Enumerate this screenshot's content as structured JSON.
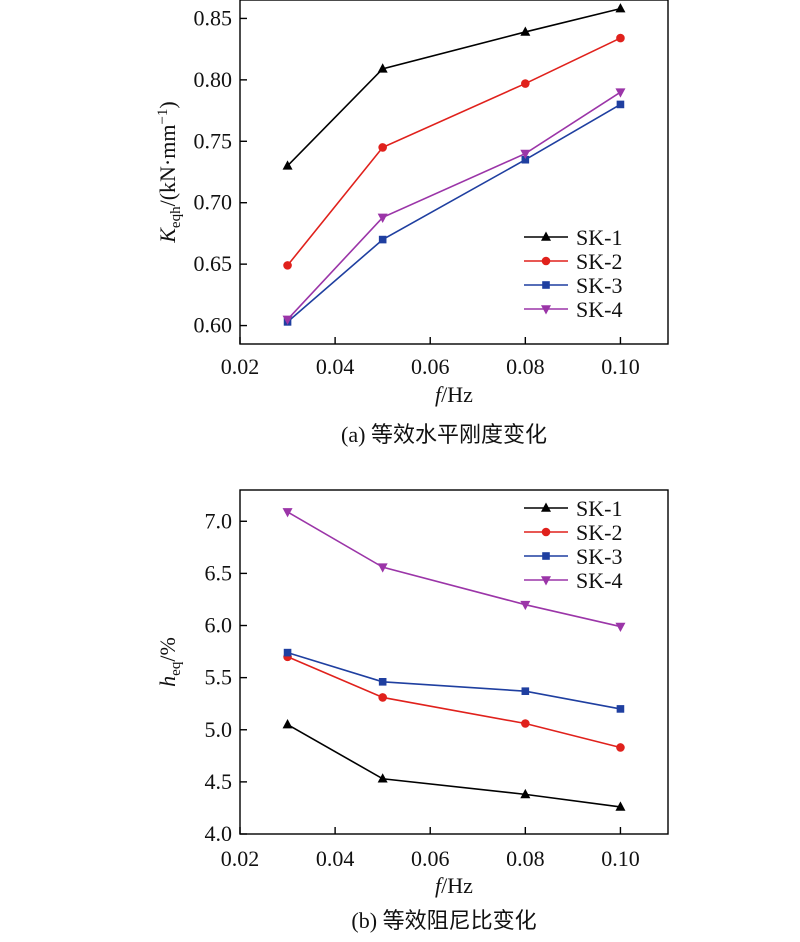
{
  "chart_data": [
    {
      "type": "line",
      "caption": "(a) 等效水平刚度变化",
      "xlabel": {
        "var": "f",
        "unit": "/Hz"
      },
      "ylabel": {
        "main": "K",
        "sub": "eqh",
        "rest": "/(kN·mm",
        "sup": "−1",
        "close": ")"
      },
      "x": [
        0.03,
        0.05,
        0.08,
        0.1
      ],
      "xlim": [
        0.02,
        0.11
      ],
      "ylim": [
        0.585,
        0.865
      ],
      "xticks": [
        "0.02",
        "0.04",
        "0.06",
        "0.08",
        "0.10"
      ],
      "yticks": [
        "0.60",
        "0.65",
        "0.70",
        "0.75",
        "0.80",
        "0.85"
      ],
      "legend_position": "lower-right",
      "series": [
        {
          "name": "SK-1",
          "color": "#000000",
          "marker": "triangle-up",
          "values": [
            0.73,
            0.809,
            0.839,
            0.858
          ]
        },
        {
          "name": "SK-2",
          "color": "#e0211c",
          "marker": "circle",
          "values": [
            0.649,
            0.745,
            0.797,
            0.834
          ]
        },
        {
          "name": "SK-3",
          "color": "#1f3fa0",
          "marker": "square",
          "values": [
            0.603,
            0.67,
            0.735,
            0.78
          ]
        },
        {
          "name": "SK-4",
          "color": "#9b35a8",
          "marker": "triangle-down",
          "values": [
            0.605,
            0.688,
            0.74,
            0.79
          ]
        }
      ]
    },
    {
      "type": "line",
      "caption": "(b) 等效阻尼比变化",
      "xlabel": {
        "var": "f",
        "unit": "/Hz"
      },
      "ylabel": {
        "main": "h",
        "sub": "eq",
        "rest": "/%",
        "sup": "",
        "close": ""
      },
      "x": [
        0.03,
        0.05,
        0.08,
        0.1
      ],
      "xlim": [
        0.02,
        0.11
      ],
      "ylim": [
        4.0,
        7.3
      ],
      "xticks": [
        "0.02",
        "0.04",
        "0.06",
        "0.08",
        "0.10"
      ],
      "yticks": [
        "4.0",
        "4.5",
        "5.0",
        "5.5",
        "6.0",
        "6.5",
        "7.0"
      ],
      "legend_position": "top-right",
      "series": [
        {
          "name": "SK-1",
          "color": "#000000",
          "marker": "triangle-up",
          "values": [
            5.05,
            4.53,
            4.38,
            4.26
          ]
        },
        {
          "name": "SK-2",
          "color": "#e0211c",
          "marker": "circle",
          "values": [
            5.7,
            5.31,
            5.06,
            4.83
          ]
        },
        {
          "name": "SK-3",
          "color": "#1f3fa0",
          "marker": "square",
          "values": [
            5.74,
            5.46,
            5.37,
            5.2
          ]
        },
        {
          "name": "SK-4",
          "color": "#9b35a8",
          "marker": "triangle-down",
          "values": [
            7.09,
            6.56,
            6.2,
            5.99
          ]
        }
      ]
    }
  ]
}
